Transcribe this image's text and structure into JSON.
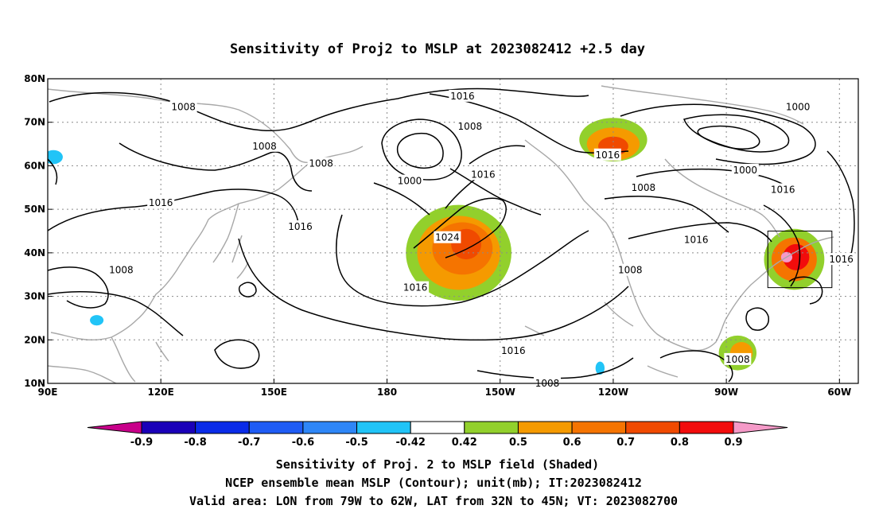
{
  "title": "Sensitivity of Proj2 to MSLP at 2023082412 +2.5 day",
  "map": {
    "lon_ticks": [
      "90E",
      "120E",
      "150E",
      "180",
      "150W",
      "120W",
      "90W",
      "60W"
    ],
    "lat_ticks": [
      "80N",
      "70N",
      "60N",
      "50N",
      "40N",
      "30N",
      "20N",
      "10N"
    ],
    "lon_range": [
      90,
      305
    ],
    "lat_range": [
      10,
      80
    ],
    "grid": "dotted",
    "valid_box": {
      "lon": [
        281,
        298
      ],
      "lat": [
        32,
        45
      ]
    },
    "contour_labels": [
      {
        "text": "1016",
        "lon": 200.0,
        "lat": 76.0
      },
      {
        "text": "1008",
        "lon": 126.0,
        "lat": 73.5
      },
      {
        "text": "1008",
        "lon": 202.0,
        "lat": 69.0
      },
      {
        "text": "1008",
        "lon": 147.5,
        "lat": 64.5
      },
      {
        "text": "1008",
        "lon": 162.5,
        "lat": 60.5
      },
      {
        "text": "1016",
        "lon": 238.5,
        "lat": 62.5
      },
      {
        "text": "1016",
        "lon": 205.5,
        "lat": 58.0
      },
      {
        "text": "1000",
        "lon": 289.0,
        "lat": 73.5
      },
      {
        "text": "1000",
        "lon": 186.0,
        "lat": 56.5
      },
      {
        "text": "1000",
        "lon": 275.0,
        "lat": 59.0
      },
      {
        "text": "1008",
        "lon": 248.0,
        "lat": 55.0
      },
      {
        "text": "1016",
        "lon": 285.0,
        "lat": 54.5
      },
      {
        "text": "1016",
        "lon": 120.0,
        "lat": 51.5
      },
      {
        "text": "1016",
        "lon": 157.0,
        "lat": 46.0
      },
      {
        "text": "1024",
        "lon": 196.0,
        "lat": 43.5
      },
      {
        "text": "1016",
        "lon": 262.0,
        "lat": 43.0
      },
      {
        "text": "1016",
        "lon": 300.5,
        "lat": 38.5
      },
      {
        "text": "1008",
        "lon": 109.5,
        "lat": 36.0
      },
      {
        "text": "1008",
        "lon": 244.5,
        "lat": 36.0
      },
      {
        "text": "1016",
        "lon": 187.5,
        "lat": 32.0
      },
      {
        "text": "1016",
        "lon": 213.5,
        "lat": 17.5
      },
      {
        "text": "1008",
        "lon": 273.0,
        "lat": 15.5
      },
      {
        "text": "1008",
        "lon": 222.5,
        "lat": 10.0
      }
    ]
  },
  "colorbar": {
    "labels": [
      "-0.9",
      "-0.8",
      "-0.7",
      "-0.6",
      "-0.5",
      "-0.42",
      "0.42",
      "0.5",
      "0.6",
      "0.7",
      "0.8",
      "0.9"
    ],
    "colors": [
      "#1a00b8",
      "#0a2be8",
      "#1f5cf5",
      "#2e86f7",
      "#21c4f7",
      "#ffffff",
      "#92d02c",
      "#f59a00",
      "#f57400",
      "#f04a00",
      "#f20c0c"
    ],
    "low_end_color": "#c8008a",
    "high_end_color": "#f59ac8"
  },
  "captions": [
    "Sensitivity of Proj. 2 to MSLP field (Shaded)",
    "NCEP ensemble mean MSLP (Contour); unit(mb); IT:2023082412",
    "Valid area: LON from 79W to 62W, LAT from 32N to 45N; VT: 2023082700"
  ],
  "shading": [
    {
      "level": "0.42",
      "color": "#92d02c",
      "lon": 199,
      "lat": 40,
      "rx": 14,
      "ry": 11
    },
    {
      "level": "0.5",
      "color": "#f59a00",
      "lon": 199,
      "lat": 40,
      "rx": 11,
      "ry": 8.5
    },
    {
      "level": "0.6",
      "color": "#f57400",
      "lon": 200,
      "lat": 41,
      "rx": 8,
      "ry": 6
    },
    {
      "level": "0.7",
      "color": "#f04a00",
      "lon": 201,
      "lat": 42,
      "rx": 4,
      "ry": 3.5
    },
    {
      "level": "0.42",
      "color": "#92d02c",
      "lon": 240,
      "lat": 66,
      "rx": 9,
      "ry": 5
    },
    {
      "level": "0.5",
      "color": "#f59a00",
      "lon": 240,
      "lat": 65,
      "rx": 7,
      "ry": 3.8
    },
    {
      "level": "0.7",
      "color": "#f04a00",
      "lon": 240,
      "lat": 64.5,
      "rx": 4,
      "ry": 2.2
    },
    {
      "level": "0.42",
      "color": "#92d02c",
      "lon": 288,
      "lat": 38.5,
      "rx": 8,
      "ry": 7
    },
    {
      "level": "0.6",
      "color": "#f57400",
      "lon": 288,
      "lat": 38.5,
      "rx": 6,
      "ry": 5
    },
    {
      "level": "0.8",
      "color": "#f20c0c",
      "lon": 288.5,
      "lat": 39,
      "rx": 3.5,
      "ry": 3
    },
    {
      "level": "0.9",
      "color": "#f59ac8",
      "lon": 286,
      "lat": 39,
      "rx": 1.5,
      "ry": 1.2
    },
    {
      "level": "0.42",
      "color": "#92d02c",
      "lon": 273,
      "lat": 17,
      "rx": 5,
      "ry": 4
    },
    {
      "level": "0.5",
      "color": "#f59a00",
      "lon": 274,
      "lat": 17,
      "rx": 3,
      "ry": 2.5
    },
    {
      "level": "-0.5",
      "color": "#21c4f7",
      "lon": 91.5,
      "lat": 62,
      "rx": 2.5,
      "ry": 1.6
    },
    {
      "level": "-0.5",
      "color": "#21c4f7",
      "lon": 103,
      "lat": 24.5,
      "rx": 1.8,
      "ry": 1.2
    },
    {
      "level": "-0.5",
      "color": "#21c4f7",
      "lon": 236.5,
      "lat": 13.5,
      "rx": 1.2,
      "ry": 1.5
    }
  ]
}
